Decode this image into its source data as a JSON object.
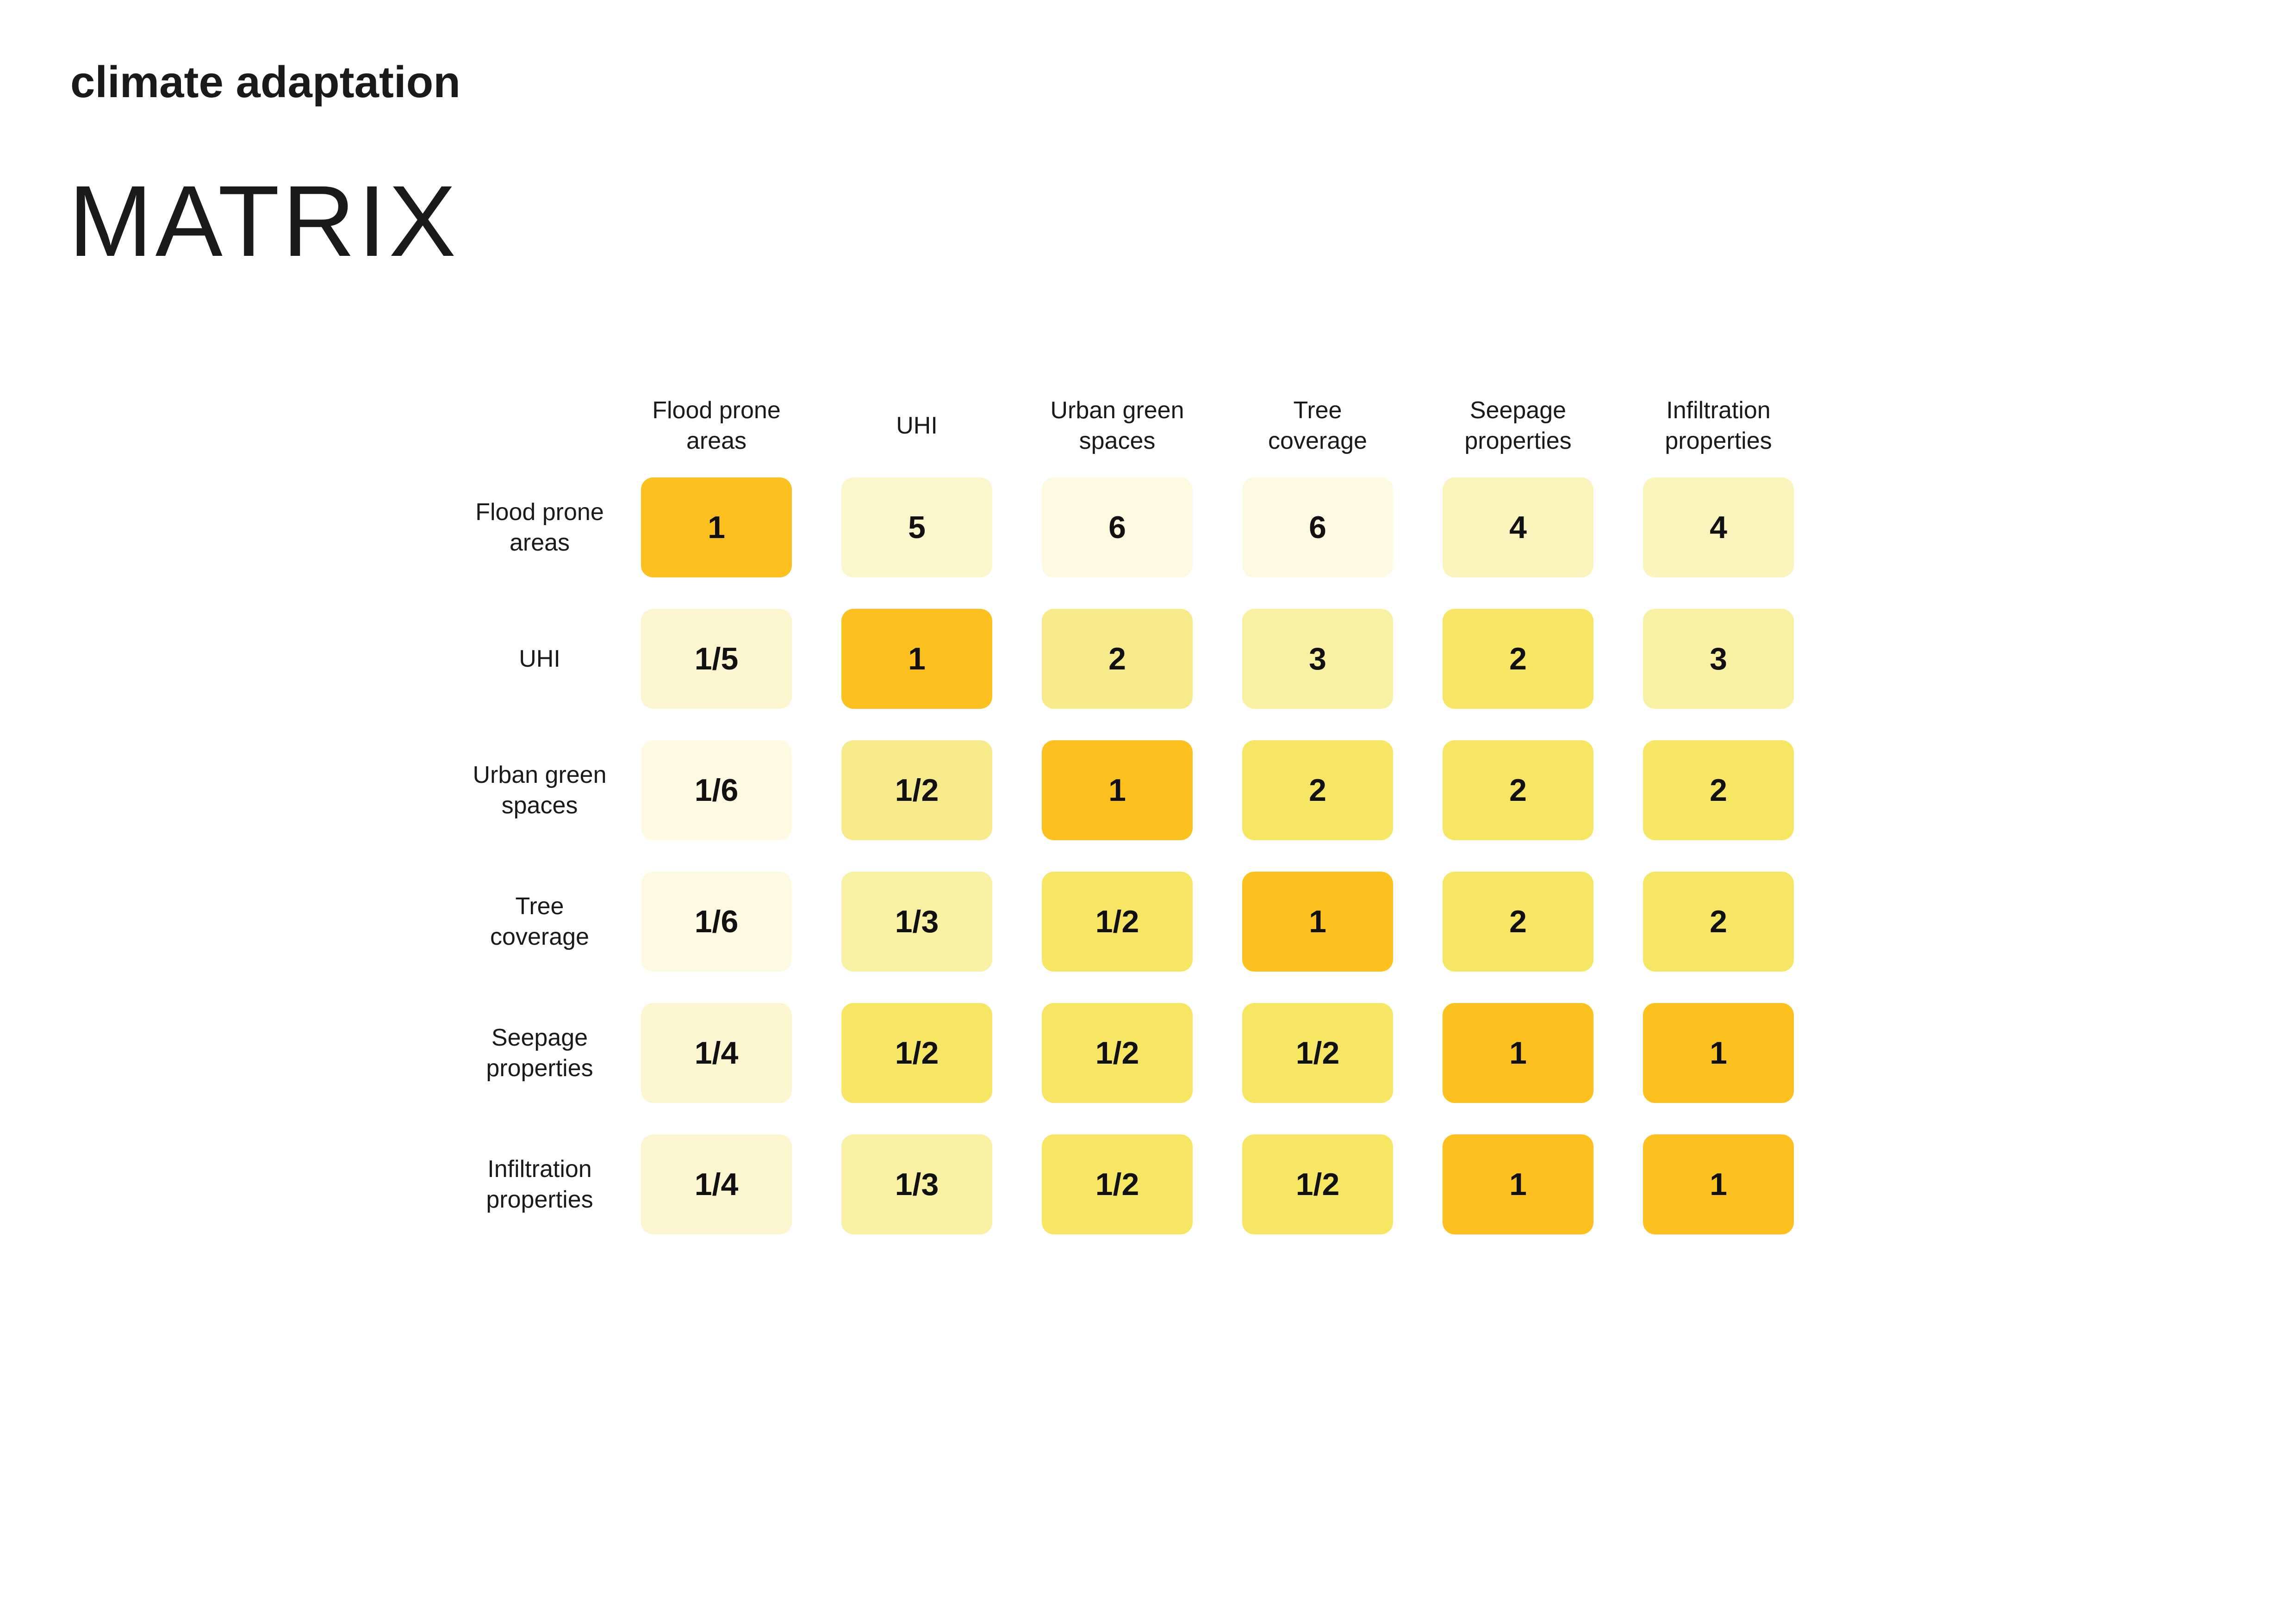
{
  "header": {
    "subtitle": "climate adaptation",
    "title": "MATRIX"
  },
  "chart_data": {
    "type": "heatmap",
    "title": "MATRIX",
    "subtitle": "climate adaptation",
    "columns": [
      "Flood prone\nareas",
      "UHI",
      "Urban green\nspaces",
      "Tree\ncoverage",
      "Seepage\nproperties",
      "Infiltration\nproperties"
    ],
    "rows": [
      "Flood prone\nareas",
      "UHI",
      "Urban green\nspaces",
      "Tree\ncoverage",
      "Seepage\nproperties",
      "Infiltration\nproperties"
    ],
    "values": [
      [
        "1",
        "5",
        "6",
        "6",
        "4",
        "4"
      ],
      [
        "1/5",
        "1",
        "2",
        "3",
        "2",
        "3"
      ],
      [
        "1/6",
        "1/2",
        "1",
        "2",
        "2",
        "2"
      ],
      [
        "1/6",
        "1/3",
        "1/2",
        "1",
        "2",
        "2"
      ],
      [
        "1/4",
        "1/2",
        "1/2",
        "1/2",
        "1",
        "1"
      ],
      [
        "1/4",
        "1/3",
        "1/2",
        "1/2",
        "1",
        "1"
      ]
    ],
    "cell_colors": [
      [
        "#fcc01f",
        "#fbf7cc",
        "#fdfae1",
        "#fdfae1",
        "#faf4bd",
        "#faf4bd"
      ],
      [
        "#fbf6cf",
        "#fcc01f",
        "#f7ea8a",
        "#f8f0a2",
        "#f6e663",
        "#f8f0a2"
      ],
      [
        "#fdfae1",
        "#f7ea8a",
        "#fcc01f",
        "#f6e663",
        "#f6e663",
        "#f6e663"
      ],
      [
        "#fdfae1",
        "#f8f0a2",
        "#f6e663",
        "#fcc01f",
        "#f6e663",
        "#f6e663"
      ],
      [
        "#fbf6cf",
        "#f6e663",
        "#f6e663",
        "#f6e663",
        "#fcc01f",
        "#fcc01f"
      ],
      [
        "#fbf6cf",
        "#f8f0a2",
        "#f6e663",
        "#f6e663",
        "#fcc01f",
        "#fcc01f"
      ]
    ],
    "grid": false
  }
}
